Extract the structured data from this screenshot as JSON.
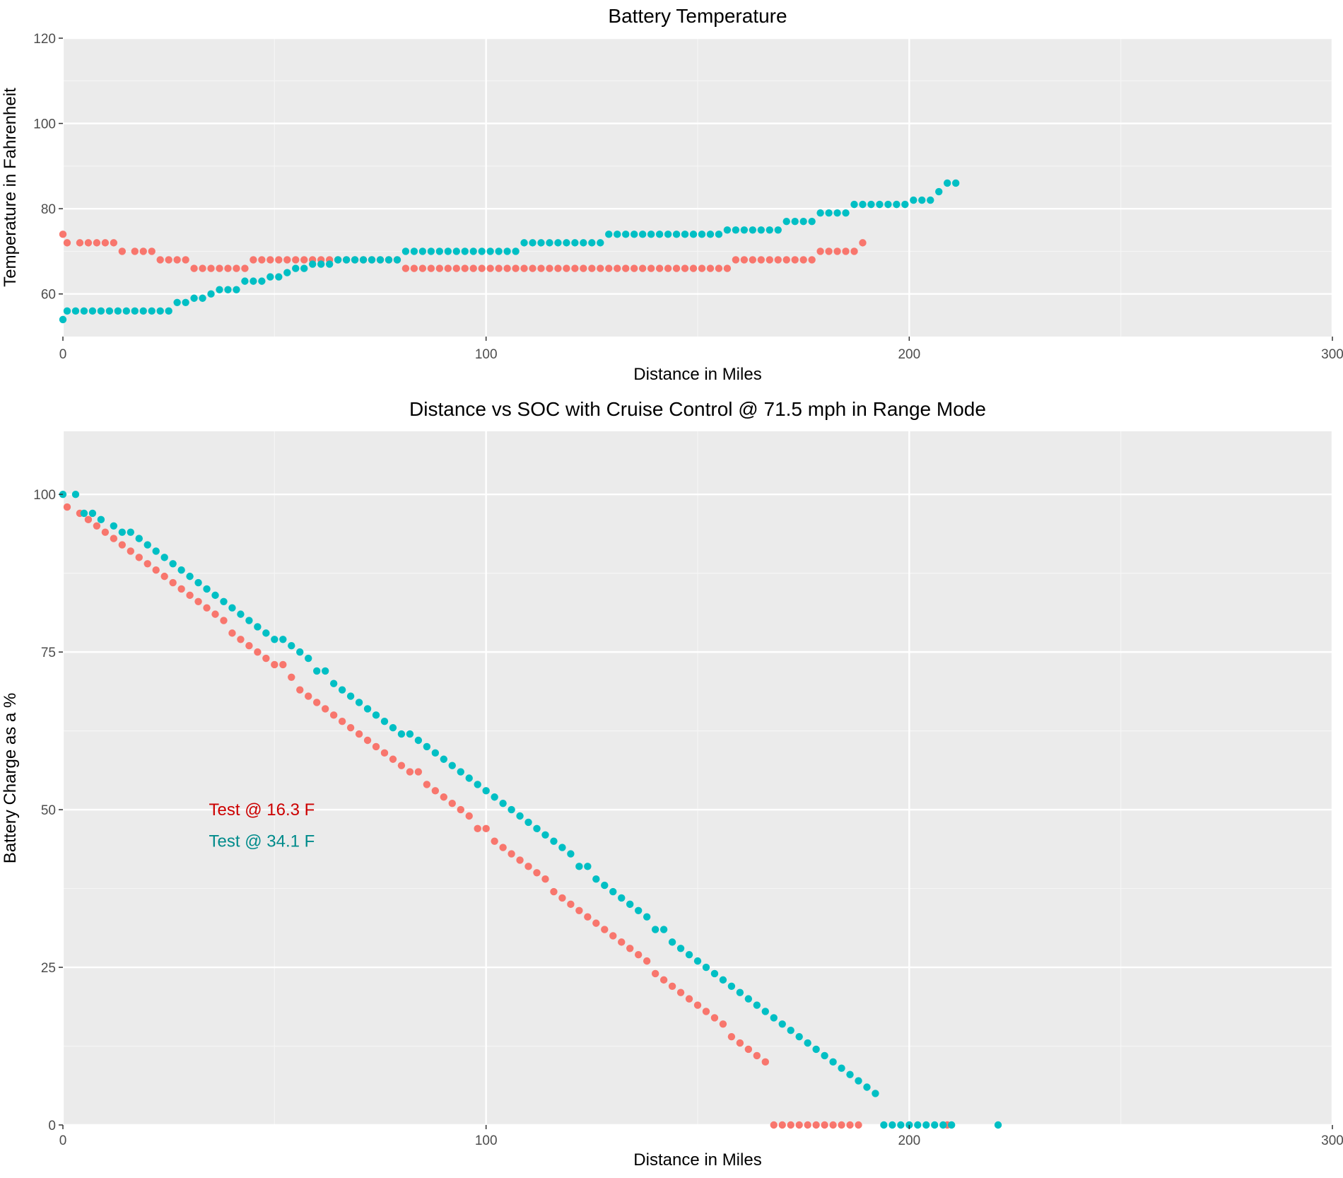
{
  "chart_data": [
    {
      "type": "scatter",
      "title": "Battery Temperature",
      "xlabel": "Distance in Miles",
      "ylabel": "Temperature in Fahrenheit",
      "xlim": [
        0,
        300
      ],
      "ylim": [
        50,
        120
      ],
      "x_ticks": [
        0,
        100,
        200,
        300
      ],
      "x_tick_labels": [
        "0",
        "100",
        "200",
        "300"
      ],
      "y_ticks": [
        60,
        80,
        100,
        120
      ],
      "y_tick_labels": [
        "60",
        "80",
        "100",
        "120"
      ],
      "grid": true,
      "legend": "none",
      "series": [
        {
          "color": "#F8766D",
          "x": [
            0,
            1,
            4,
            6,
            8,
            10,
            12,
            14,
            17,
            19,
            21,
            23,
            25,
            27,
            29,
            31,
            33,
            35,
            37,
            39,
            41,
            43,
            45,
            47,
            49,
            51,
            53,
            55,
            57,
            59,
            61,
            63,
            65,
            67,
            69,
            71,
            73,
            75,
            77,
            79,
            81,
            83,
            85,
            87,
            89,
            91,
            93,
            95,
            97,
            99,
            101,
            103,
            105,
            107,
            109,
            111,
            113,
            115,
            117,
            119,
            121,
            123,
            125,
            127,
            129,
            131,
            133,
            135,
            137,
            139,
            141,
            143,
            145,
            147,
            149,
            151,
            153,
            155,
            157,
            159,
            161,
            163,
            165,
            167,
            169,
            171,
            173,
            175,
            177,
            179,
            181,
            183,
            185,
            187,
            189
          ],
          "y": [
            74,
            72,
            72,
            72,
            72,
            72,
            72,
            70,
            70,
            70,
            70,
            68,
            68,
            68,
            68,
            66,
            66,
            66,
            66,
            66,
            66,
            66,
            68,
            68,
            68,
            68,
            68,
            68,
            68,
            68,
            68,
            68,
            68,
            68,
            68,
            68,
            68,
            68,
            68,
            68,
            66,
            66,
            66,
            66,
            66,
            66,
            66,
            66,
            66,
            66,
            66,
            66,
            66,
            66,
            66,
            66,
            66,
            66,
            66,
            66,
            66,
            66,
            66,
            66,
            66,
            66,
            66,
            66,
            66,
            66,
            66,
            66,
            66,
            66,
            66,
            66,
            66,
            66,
            66,
            68,
            68,
            68,
            68,
            68,
            68,
            68,
            68,
            68,
            68,
            70,
            70,
            70,
            70,
            70,
            72
          ]
        },
        {
          "color": "#00BFC4",
          "x": [
            0,
            1,
            3,
            5,
            7,
            9,
            11,
            13,
            15,
            17,
            19,
            21,
            23,
            25,
            27,
            29,
            31,
            33,
            35,
            37,
            39,
            41,
            43,
            45,
            47,
            49,
            51,
            53,
            55,
            57,
            59,
            61,
            63,
            65,
            67,
            69,
            71,
            73,
            75,
            77,
            79,
            81,
            83,
            85,
            87,
            89,
            91,
            93,
            95,
            97,
            99,
            101,
            103,
            105,
            107,
            109,
            111,
            113,
            115,
            117,
            119,
            121,
            123,
            125,
            127,
            129,
            131,
            133,
            135,
            137,
            139,
            141,
            143,
            145,
            147,
            149,
            151,
            153,
            155,
            157,
            159,
            161,
            163,
            165,
            167,
            169,
            171,
            173,
            175,
            177,
            179,
            181,
            183,
            185,
            187,
            189,
            191,
            193,
            195,
            197,
            199,
            201,
            203,
            205,
            207,
            209,
            211
          ],
          "y": [
            54,
            56,
            56,
            56,
            56,
            56,
            56,
            56,
            56,
            56,
            56,
            56,
            56,
            56,
            58,
            58,
            59,
            59,
            60,
            61,
            61,
            61,
            63,
            63,
            63,
            64,
            64,
            65,
            66,
            66,
            67,
            67,
            67,
            68,
            68,
            68,
            68,
            68,
            68,
            68,
            68,
            70,
            70,
            70,
            70,
            70,
            70,
            70,
            70,
            70,
            70,
            70,
            70,
            70,
            70,
            72,
            72,
            72,
            72,
            72,
            72,
            72,
            72,
            72,
            72,
            74,
            74,
            74,
            74,
            74,
            74,
            74,
            74,
            74,
            74,
            74,
            74,
            74,
            74,
            75,
            75,
            75,
            75,
            75,
            75,
            75,
            77,
            77,
            77,
            77,
            79,
            79,
            79,
            79,
            81,
            81,
            81,
            81,
            81,
            81,
            81,
            82,
            82,
            82,
            84,
            86,
            86
          ]
        }
      ]
    },
    {
      "type": "scatter",
      "title": "Distance vs SOC with Cruise Control @ 71.5 mph in Range Mode",
      "xlabel": "Distance in Miles",
      "ylabel": "Battery Charge as a %",
      "xlim": [
        0,
        300
      ],
      "ylim": [
        0,
        110
      ],
      "x_ticks": [
        0,
        100,
        200,
        300
      ],
      "x_tick_labels": [
        "0",
        "100",
        "200",
        "300"
      ],
      "y_ticks": [
        0,
        25,
        50,
        75,
        100
      ],
      "y_tick_labels": [
        "0",
        "25",
        "50",
        "75",
        "100"
      ],
      "grid": true,
      "legend": "none",
      "annotations": [
        {
          "text": "Test @   16.3  F",
          "color": "#CC0000",
          "x": 35,
          "y": 50
        },
        {
          "text": "Test @   34.1  F",
          "color": "#008B8B",
          "x": 35,
          "y": 45
        }
      ],
      "series": [
        {
          "color": "#F8766D",
          "x": [
            1,
            4,
            6,
            8,
            10,
            12,
            14,
            16,
            18,
            20,
            22,
            24,
            26,
            28,
            30,
            32,
            34,
            36,
            38,
            40,
            42,
            44,
            46,
            48,
            50,
            52,
            54,
            56,
            58,
            60,
            62,
            64,
            66,
            68,
            70,
            72,
            74,
            76,
            78,
            80,
            82,
            84,
            86,
            88,
            90,
            92,
            94,
            96,
            98,
            100,
            102,
            104,
            106,
            108,
            110,
            112,
            114,
            116,
            118,
            120,
            122,
            124,
            126,
            128,
            130,
            132,
            134,
            136,
            138,
            140,
            142,
            144,
            146,
            148,
            150,
            152,
            154,
            156,
            158,
            160,
            162,
            164,
            166,
            168,
            170,
            172,
            174,
            176,
            178,
            180,
            182,
            184,
            186,
            188,
            209
          ],
          "y": [
            98,
            97,
            96,
            95,
            94,
            93,
            92,
            91,
            90,
            89,
            88,
            87,
            86,
            85,
            84,
            83,
            82,
            81,
            80,
            78,
            77,
            76,
            75,
            74,
            73,
            73,
            71,
            69,
            68,
            67,
            66,
            65,
            64,
            63,
            62,
            61,
            60,
            59,
            58,
            57,
            56,
            56,
            54,
            53,
            52,
            51,
            50,
            49,
            47,
            47,
            45,
            44,
            43,
            42,
            41,
            40,
            39,
            37,
            36,
            35,
            34,
            33,
            32,
            31,
            30,
            29,
            28,
            27,
            26,
            24,
            23,
            22,
            21,
            20,
            19,
            18,
            17,
            16,
            14,
            13,
            12,
            11,
            10,
            0,
            0,
            0,
            0,
            0,
            0,
            0,
            0,
            0,
            0,
            0,
            0
          ]
        },
        {
          "color": "#00BFC4",
          "x": [
            0,
            3,
            5,
            7,
            9,
            12,
            14,
            16,
            18,
            20,
            22,
            24,
            26,
            28,
            30,
            32,
            34,
            36,
            38,
            40,
            42,
            44,
            46,
            48,
            50,
            52,
            54,
            56,
            58,
            60,
            62,
            64,
            66,
            68,
            70,
            72,
            74,
            76,
            78,
            80,
            82,
            84,
            86,
            88,
            90,
            92,
            94,
            96,
            98,
            100,
            102,
            104,
            106,
            108,
            110,
            112,
            114,
            116,
            118,
            120,
            122,
            124,
            126,
            128,
            130,
            132,
            134,
            136,
            138,
            140,
            142,
            144,
            146,
            148,
            150,
            152,
            154,
            156,
            158,
            160,
            162,
            164,
            166,
            168,
            170,
            172,
            174,
            176,
            178,
            180,
            182,
            184,
            186,
            188,
            190,
            192,
            194,
            196,
            198,
            200,
            202,
            204,
            206,
            208,
            210,
            221
          ],
          "y": [
            100,
            100,
            97,
            97,
            96,
            95,
            94,
            94,
            93,
            92,
            91,
            90,
            89,
            88,
            87,
            86,
            85,
            84,
            83,
            82,
            81,
            80,
            79,
            78,
            77,
            77,
            76,
            75,
            74,
            72,
            72,
            70,
            69,
            68,
            67,
            66,
            65,
            64,
            63,
            62,
            62,
            61,
            60,
            59,
            58,
            57,
            56,
            55,
            54,
            53,
            52,
            51,
            50,
            49,
            48,
            47,
            46,
            45,
            44,
            43,
            41,
            41,
            39,
            38,
            37,
            36,
            35,
            34,
            33,
            31,
            31,
            29,
            28,
            27,
            26,
            25,
            24,
            23,
            22,
            21,
            20,
            19,
            18,
            17,
            16,
            15,
            14,
            13,
            12,
            11,
            10,
            9,
            8,
            7,
            6,
            5,
            0,
            0,
            0,
            0,
            0,
            0,
            0,
            0,
            0,
            0
          ]
        }
      ]
    }
  ]
}
